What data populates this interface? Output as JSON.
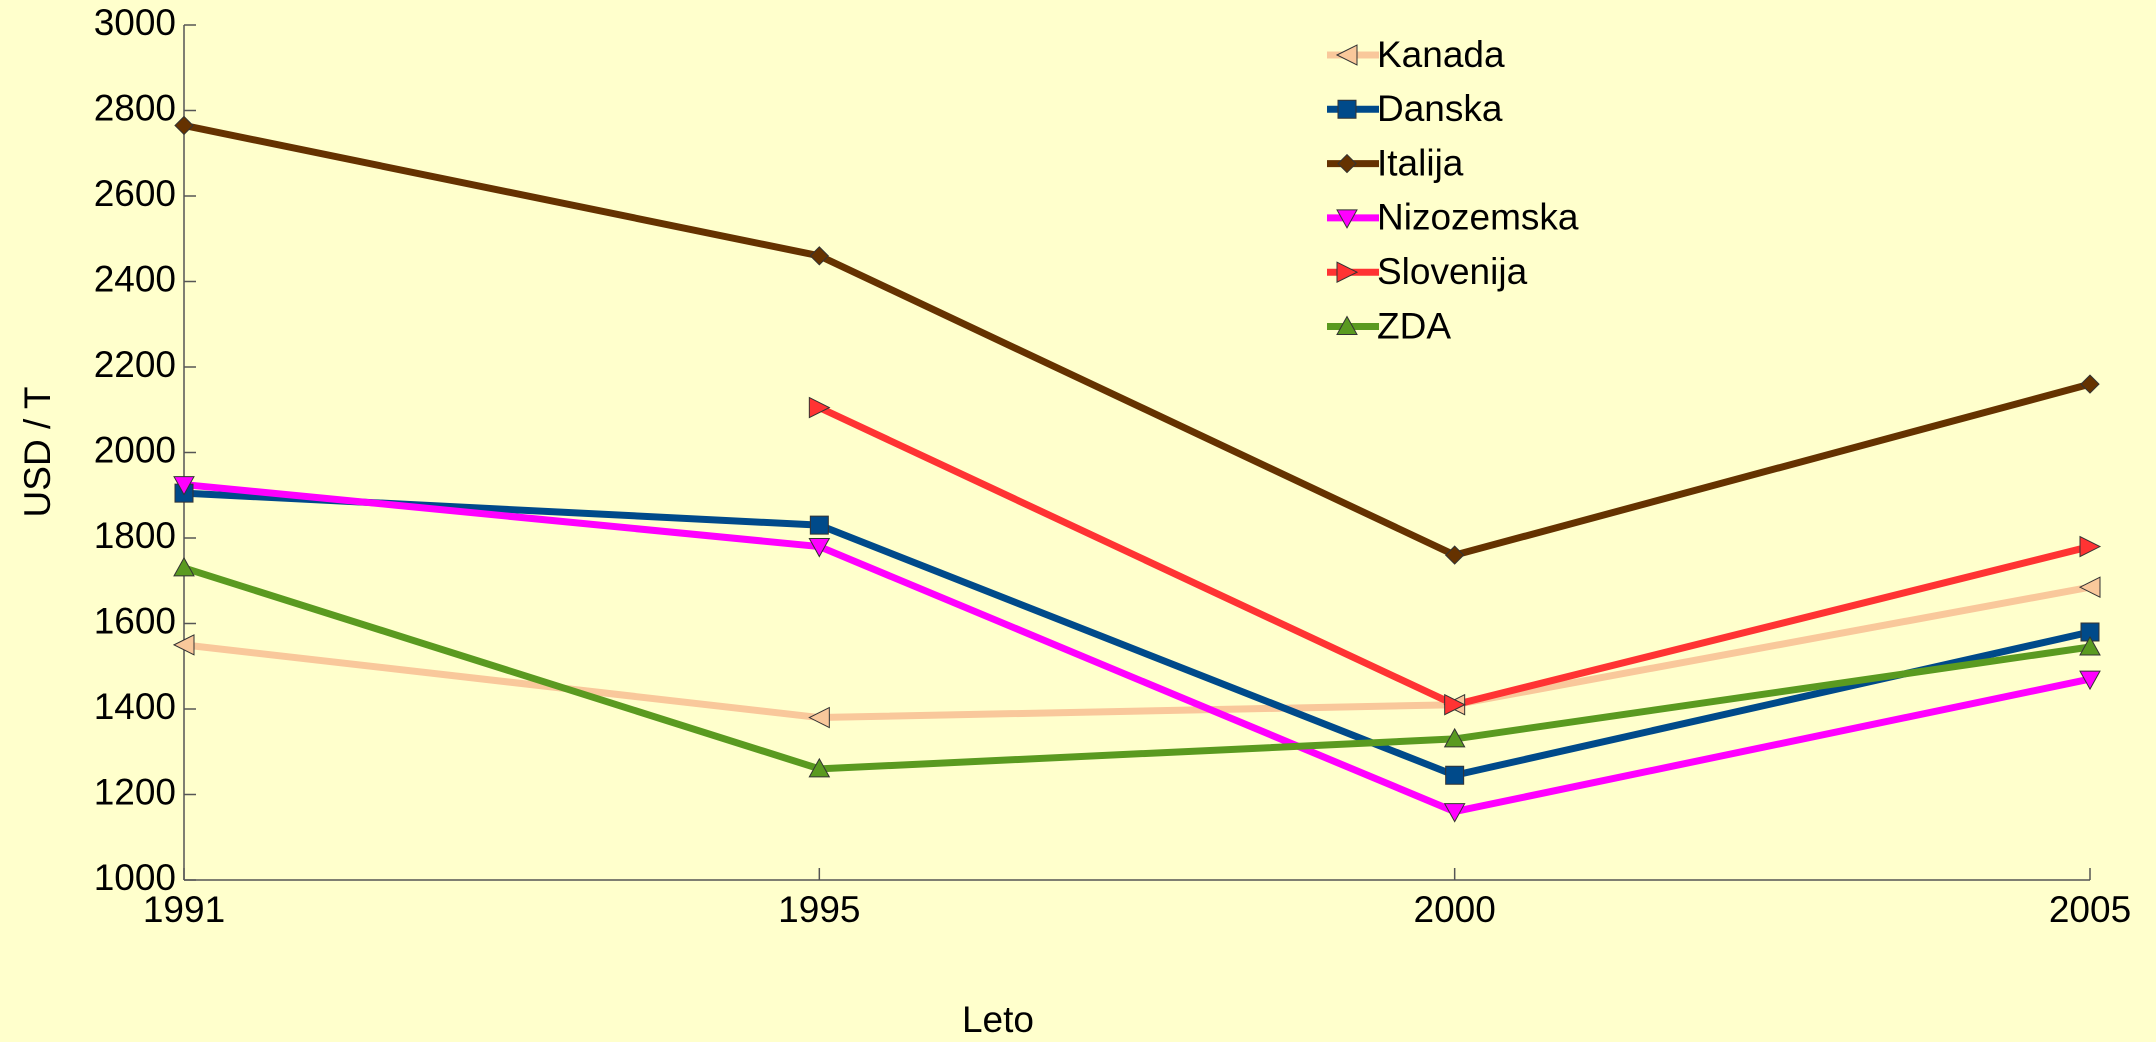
{
  "chart_data": {
    "type": "line",
    "xlabel": "Leto",
    "ylabel": "USD / T",
    "categories": [
      "1991",
      "1995",
      "2000",
      "2005"
    ],
    "series": [
      {
        "name": "Kanada",
        "color": "#f9c89b",
        "marker": "triangle-left",
        "values": [
          1550,
          1380,
          1410,
          1685
        ]
      },
      {
        "name": "Danska",
        "color": "#004a8a",
        "marker": "square",
        "values": [
          1905,
          1830,
          1245,
          1580
        ]
      },
      {
        "name": "Italija",
        "color": "#653200",
        "marker": "diamond",
        "values": [
          2765,
          2460,
          1760,
          2160
        ]
      },
      {
        "name": "Nizozemska",
        "color": "#ff00ff",
        "marker": "triangle-down",
        "values": [
          1925,
          1780,
          1160,
          1470
        ]
      },
      {
        "name": "Slovenija",
        "color": "#ff3333",
        "marker": "triangle-right",
        "values": [
          null,
          2105,
          1410,
          1780
        ]
      },
      {
        "name": "ZDA",
        "color": "#5a9a20",
        "marker": "triangle-up",
        "values": [
          1730,
          1260,
          1330,
          1545
        ]
      }
    ],
    "ylim": [
      1000,
      3000
    ],
    "yticks": [
      1000,
      1200,
      1400,
      1600,
      1800,
      2000,
      2200,
      2400,
      2600,
      2800,
      3000
    ],
    "grid": false,
    "legend": "upper center"
  }
}
